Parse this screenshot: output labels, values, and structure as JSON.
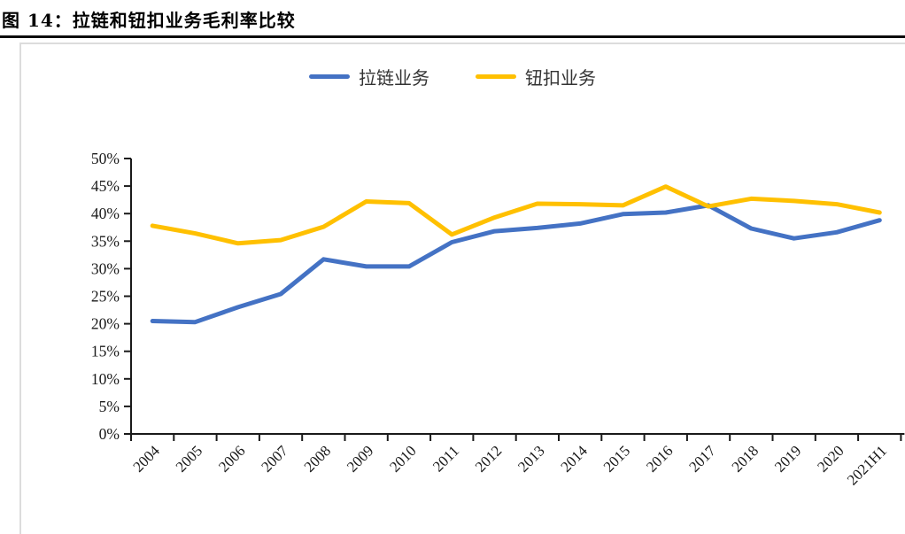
{
  "figure": {
    "title": "图 14：拉链和钮扣业务毛利率比较"
  },
  "chart_data": {
    "type": "line",
    "title": "拉链和钮扣业务毛利率比较",
    "categories": [
      "2004",
      "2005",
      "2006",
      "2007",
      "2008",
      "2009",
      "2010",
      "2011",
      "2012",
      "2013",
      "2014",
      "2015",
      "2016",
      "2017",
      "2018",
      "2019",
      "2020",
      "2021H1"
    ],
    "series": [
      {
        "name": "拉链业务",
        "color": "#4472C4",
        "values": [
          20.5,
          20.3,
          23.0,
          25.4,
          31.7,
          30.4,
          30.4,
          34.8,
          36.8,
          37.4,
          38.2,
          39.9,
          40.2,
          41.5,
          37.3,
          35.5,
          36.6,
          38.8
        ]
      },
      {
        "name": "钮扣业务",
        "color": "#FFC000",
        "values": [
          37.8,
          36.4,
          34.6,
          35.2,
          37.6,
          42.2,
          41.9,
          36.2,
          39.3,
          41.8,
          41.7,
          41.5,
          44.9,
          41.3,
          42.7,
          42.3,
          41.7,
          40.2
        ]
      }
    ],
    "xlabel": "",
    "ylabel": "",
    "ylim": [
      0,
      50
    ],
    "ytick_step": 5,
    "ytick_format": "percent",
    "grid": false,
    "legend_position": "top-center"
  }
}
